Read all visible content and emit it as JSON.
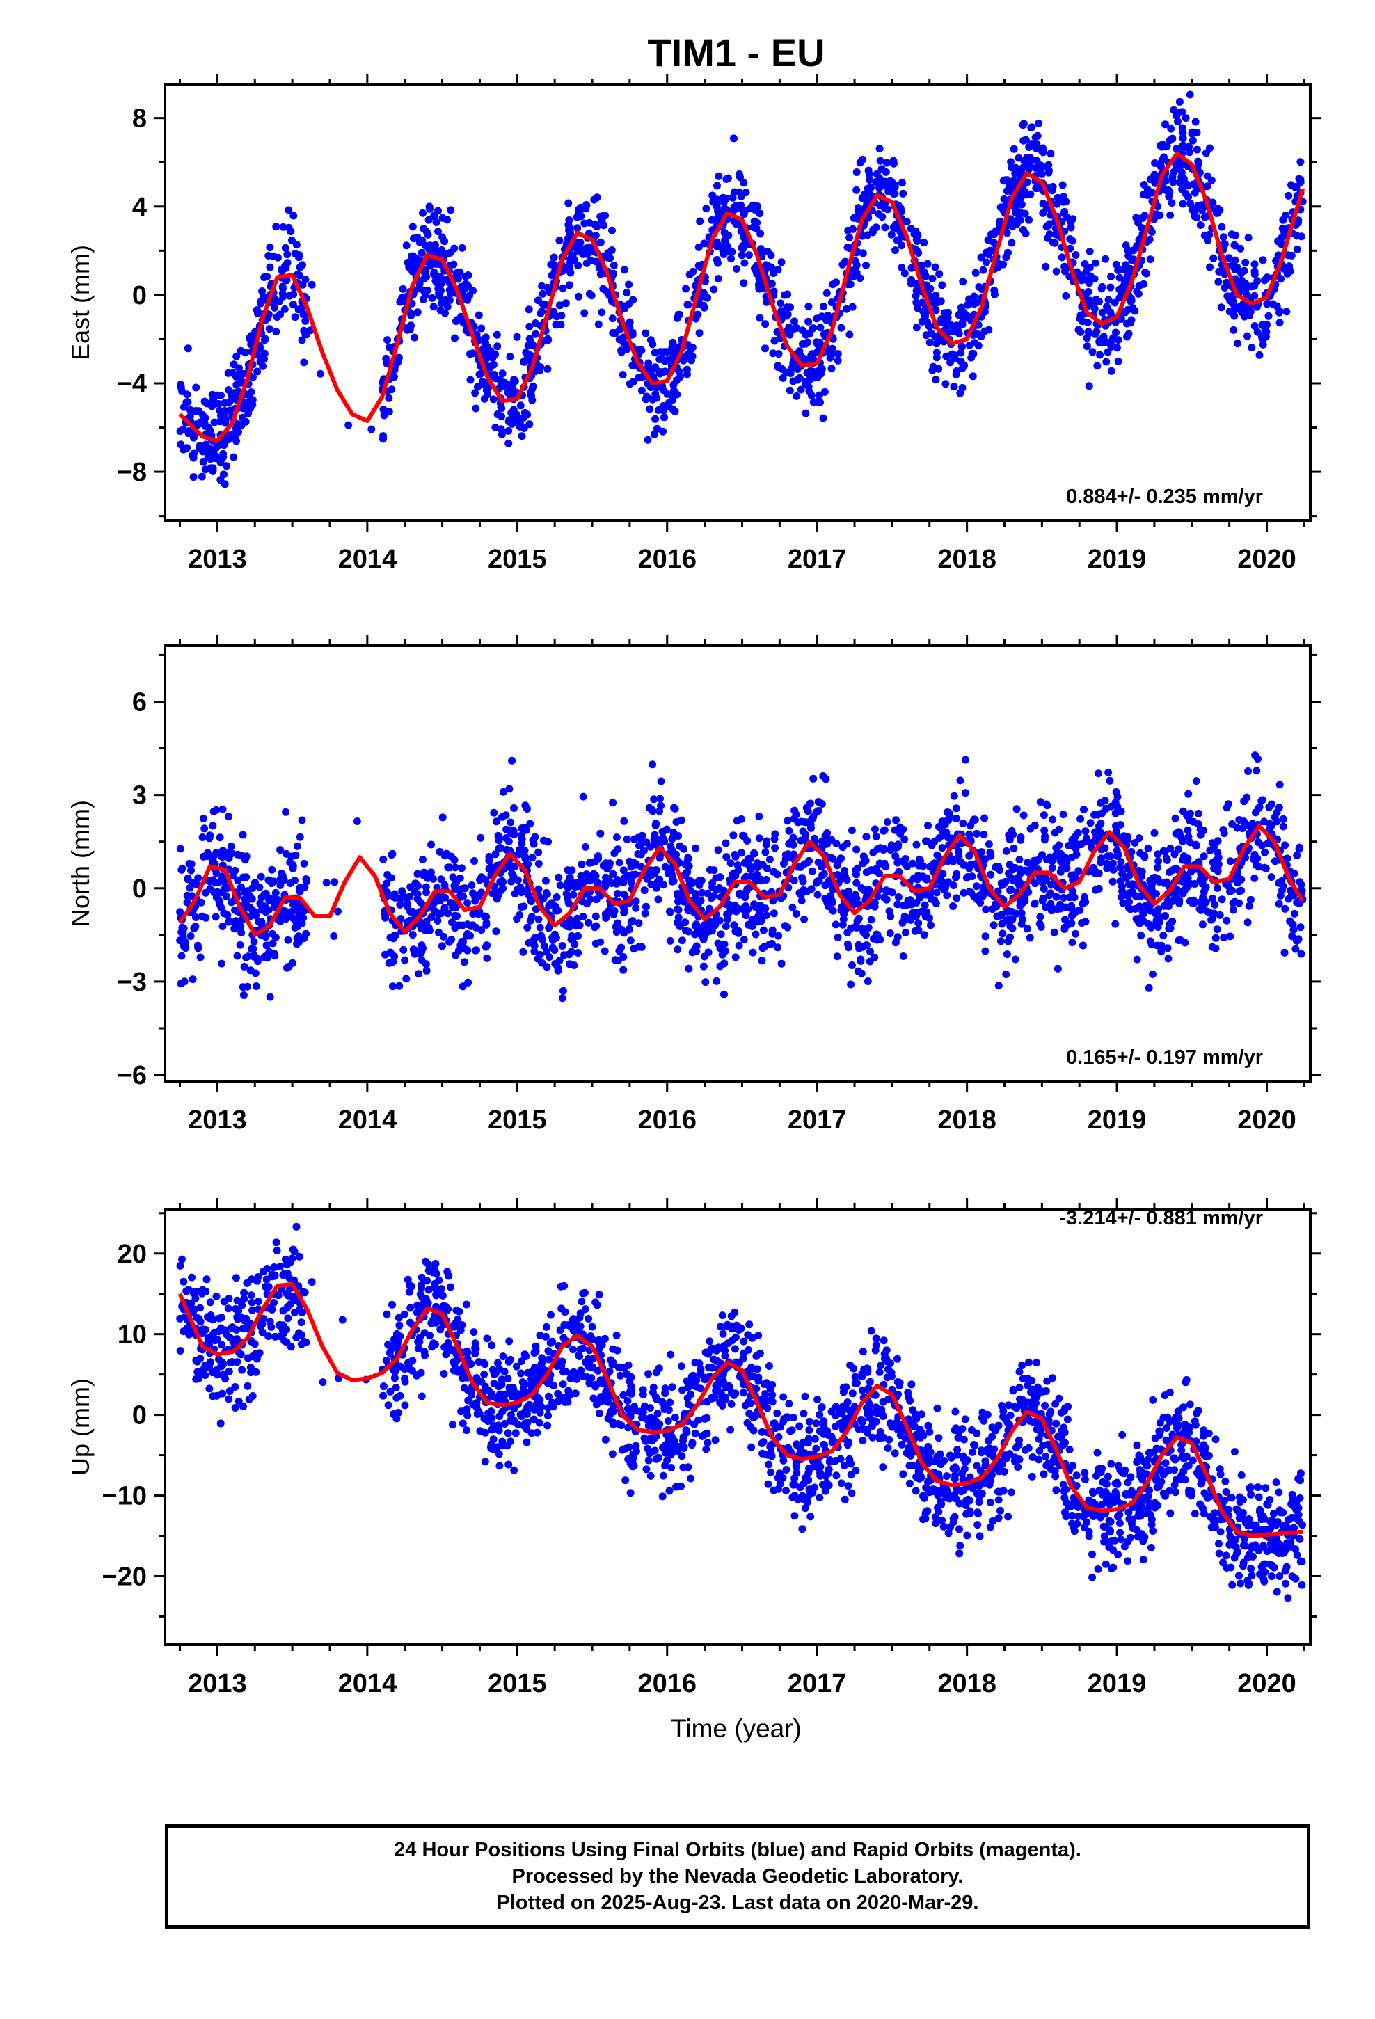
{
  "title": "TIM1 - EU",
  "xlabel": "Time (year)",
  "caption": {
    "line1": "24 Hour Positions Using Final Orbits (blue) and Rapid Orbits (magenta).",
    "line2": "Processed by the Nevada Geodetic Laboratory.",
    "line3": "Plotted on 2025-Aug-23. Last data on 2020-Mar-29."
  },
  "colors": {
    "points": "#0000ff",
    "fit": "#ff0000",
    "axes": "#000000"
  },
  "chart_data": [
    {
      "type": "scatter",
      "ylabel": "East (mm)",
      "rate_label": "0.884+/- 0.235 mm/yr",
      "xlim": [
        2012.65,
        2020.29
      ],
      "ylim": [
        -10.2,
        9.5
      ],
      "yticks": [
        -8,
        -4,
        0,
        4,
        8
      ],
      "xticks": [
        2013,
        2014,
        2015,
        2016,
        2017,
        2018,
        2019,
        2020
      ],
      "data_range": [
        2012.75,
        2020.24
      ],
      "fit_curve": {
        "x": [
          2012.75,
          2012.9,
          2013.0,
          2013.1,
          2013.2,
          2013.3,
          2013.4,
          2013.5,
          2013.6,
          2013.7,
          2013.8,
          2013.9,
          2014.0,
          2014.1,
          2014.2,
          2014.3,
          2014.4,
          2014.5,
          2014.6,
          2014.7,
          2014.8,
          2014.9,
          2015.0,
          2015.1,
          2015.2,
          2015.3,
          2015.4,
          2015.5,
          2015.6,
          2015.7,
          2015.8,
          2015.9,
          2016.0,
          2016.1,
          2016.2,
          2016.3,
          2016.4,
          2016.5,
          2016.6,
          2016.7,
          2016.8,
          2016.9,
          2017.0,
          2017.1,
          2017.2,
          2017.3,
          2017.4,
          2017.5,
          2017.6,
          2017.7,
          2017.8,
          2017.9,
          2018.0,
          2018.1,
          2018.2,
          2018.3,
          2018.4,
          2018.5,
          2018.6,
          2018.7,
          2018.8,
          2018.9,
          2019.0,
          2019.1,
          2019.2,
          2019.3,
          2019.4,
          2019.5,
          2019.6,
          2019.7,
          2019.8,
          2019.9,
          2020.0,
          2020.1,
          2020.24
        ],
        "y": [
          -5.4,
          -6.4,
          -6.6,
          -5.8,
          -3.8,
          -1.1,
          0.8,
          0.9,
          -0.6,
          -2.6,
          -4.3,
          -5.4,
          -5.7,
          -4.6,
          -2.2,
          0.4,
          1.8,
          1.6,
          0.2,
          -1.8,
          -3.7,
          -4.8,
          -4.7,
          -3.3,
          -0.9,
          1.6,
          2.8,
          2.5,
          1.0,
          -1.2,
          -3.0,
          -4.0,
          -3.9,
          -2.5,
          0.0,
          2.5,
          3.7,
          3.4,
          1.8,
          -0.4,
          -2.3,
          -3.2,
          -3.1,
          -1.6,
          1.0,
          3.4,
          4.5,
          4.2,
          2.6,
          0.4,
          -1.5,
          -2.2,
          -2.0,
          -0.5,
          2.0,
          4.4,
          5.5,
          5.1,
          3.4,
          1.1,
          -0.8,
          -1.3,
          -1.0,
          0.6,
          3.0,
          5.4,
          6.4,
          5.9,
          4.2,
          1.8,
          0.0,
          -0.4,
          -0.1,
          1.6,
          4.8
        ]
      },
      "points_model": {
        "count": 2300,
        "gap": [
          2013.6,
          2014.1
        ],
        "noise": 1.15,
        "seed": 11
      }
    },
    {
      "type": "scatter",
      "ylabel": "North (mm)",
      "rate_label": "0.165+/- 0.197 mm/yr",
      "xlim": [
        2012.65,
        2020.29
      ],
      "ylim": [
        -6.2,
        7.8
      ],
      "yticks": [
        -6,
        -3,
        0,
        3,
        6
      ],
      "xticks": [
        2013,
        2014,
        2015,
        2016,
        2017,
        2018,
        2019,
        2020
      ],
      "data_range": [
        2012.75,
        2020.24
      ],
      "fit_curve": {
        "x": [
          2012.75,
          2012.85,
          2012.95,
          2013.05,
          2013.15,
          2013.25,
          2013.35,
          2013.45,
          2013.55,
          2013.65,
          2013.75,
          2013.85,
          2013.95,
          2014.05,
          2014.15,
          2014.25,
          2014.35,
          2014.45,
          2014.55,
          2014.65,
          2014.75,
          2014.85,
          2014.95,
          2015.05,
          2015.15,
          2015.25,
          2015.35,
          2015.45,
          2015.55,
          2015.65,
          2015.75,
          2015.85,
          2015.95,
          2016.05,
          2016.15,
          2016.25,
          2016.35,
          2016.45,
          2016.55,
          2016.65,
          2016.75,
          2016.85,
          2016.95,
          2017.05,
          2017.15,
          2017.25,
          2017.35,
          2017.45,
          2017.55,
          2017.65,
          2017.75,
          2017.85,
          2017.95,
          2018.05,
          2018.15,
          2018.25,
          2018.35,
          2018.45,
          2018.55,
          2018.65,
          2018.75,
          2018.85,
          2018.95,
          2019.05,
          2019.15,
          2019.25,
          2019.35,
          2019.45,
          2019.55,
          2019.65,
          2019.75,
          2019.85,
          2019.95,
          2020.05,
          2020.15,
          2020.24
        ],
        "y": [
          -1.1,
          -0.4,
          0.7,
          0.6,
          -0.6,
          -1.5,
          -1.2,
          -0.3,
          -0.3,
          -0.9,
          -0.9,
          0.2,
          1.0,
          0.4,
          -0.8,
          -1.4,
          -0.9,
          -0.1,
          -0.1,
          -0.7,
          -0.6,
          0.4,
          1.1,
          0.6,
          -0.6,
          -1.2,
          -0.8,
          0.0,
          0.0,
          -0.5,
          -0.4,
          0.6,
          1.3,
          0.8,
          -0.4,
          -1.0,
          -0.6,
          0.2,
          0.2,
          -0.3,
          -0.2,
          0.8,
          1.5,
          1.0,
          -0.2,
          -0.8,
          -0.4,
          0.4,
          0.4,
          -0.1,
          0.0,
          1.0,
          1.7,
          1.2,
          0.0,
          -0.6,
          -0.2,
          0.5,
          0.5,
          0.0,
          0.2,
          1.2,
          1.8,
          1.3,
          0.1,
          -0.5,
          -0.1,
          0.7,
          0.7,
          0.2,
          0.3,
          1.3,
          2.0,
          1.5,
          0.3,
          -0.4
        ]
      },
      "points_model": {
        "count": 2300,
        "gap": [
          2013.6,
          2014.1
        ],
        "noise": 1.05,
        "seed": 23
      }
    },
    {
      "type": "scatter",
      "ylabel": "Up (mm)",
      "rate_label": "-3.214+/- 0.881 mm/yr",
      "xlim": [
        2012.65,
        2020.29
      ],
      "ylim": [
        -28.5,
        25.5
      ],
      "yticks": [
        -20,
        -10,
        0,
        10,
        20
      ],
      "xticks": [
        2013,
        2014,
        2015,
        2016,
        2017,
        2018,
        2019,
        2020
      ],
      "data_range": [
        2012.75,
        2020.24
      ],
      "fit_curve": {
        "x": [
          2012.75,
          2012.9,
          2013.0,
          2013.1,
          2013.2,
          2013.3,
          2013.4,
          2013.5,
          2013.6,
          2013.7,
          2013.8,
          2013.9,
          2014.0,
          2014.1,
          2014.2,
          2014.3,
          2014.4,
          2014.5,
          2014.6,
          2014.7,
          2014.8,
          2014.9,
          2015.0,
          2015.1,
          2015.2,
          2015.3,
          2015.4,
          2015.5,
          2015.6,
          2015.7,
          2015.8,
          2015.9,
          2016.0,
          2016.1,
          2016.2,
          2016.3,
          2016.4,
          2016.5,
          2016.6,
          2016.7,
          2016.8,
          2016.9,
          2017.0,
          2017.1,
          2017.2,
          2017.3,
          2017.4,
          2017.5,
          2017.6,
          2017.7,
          2017.8,
          2017.9,
          2018.0,
          2018.1,
          2018.2,
          2018.3,
          2018.4,
          2018.5,
          2018.6,
          2018.7,
          2018.8,
          2018.9,
          2019.0,
          2019.1,
          2019.2,
          2019.3,
          2019.4,
          2019.5,
          2019.6,
          2019.7,
          2019.8,
          2019.9,
          2020.0,
          2020.1,
          2020.24
        ],
        "y": [
          15.0,
          8.5,
          7.5,
          7.8,
          9.5,
          13.0,
          16.0,
          16.2,
          13.0,
          8.5,
          5.2,
          4.3,
          4.5,
          5.2,
          7.0,
          10.5,
          13.2,
          12.5,
          8.5,
          4.0,
          1.5,
          1.2,
          1.5,
          2.5,
          5.0,
          8.5,
          9.8,
          8.5,
          4.5,
          0.0,
          -1.8,
          -2.2,
          -2.0,
          -1.2,
          1.2,
          4.5,
          6.5,
          5.5,
          1.5,
          -2.8,
          -5.0,
          -5.5,
          -5.2,
          -4.5,
          -2.0,
          1.5,
          3.6,
          2.5,
          -1.5,
          -6.0,
          -8.2,
          -8.7,
          -8.5,
          -7.8,
          -5.5,
          -2.0,
          0.4,
          -0.5,
          -4.5,
          -9.0,
          -11.5,
          -11.9,
          -11.7,
          -11.0,
          -8.5,
          -5.0,
          -2.8,
          -3.5,
          -7.5,
          -12.0,
          -14.5,
          -15.0,
          -14.9,
          -14.7,
          -14.5
        ]
      },
      "points_model": {
        "count": 2300,
        "gap": [
          2013.6,
          2014.1
        ],
        "noise": 3.6,
        "seed": 37
      }
    }
  ]
}
